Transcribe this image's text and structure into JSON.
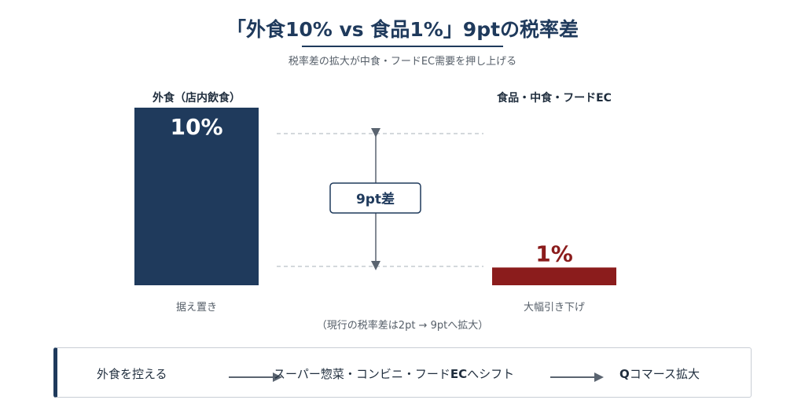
{
  "title": "「外食10% vs 食品1%」9ptの税率差",
  "subtitle": "税率差の拡大が中食・フードEC需要を押し上げる",
  "colors": {
    "left_bar": "#1f3a5c",
    "right_bar": "#8b1c1c",
    "label_right": "#8b1c1c",
    "guide": "#aab0b8",
    "arrow": "#5a6470"
  },
  "chart_data": {
    "type": "bar",
    "categories": [
      "外食（店内飲食）",
      "食品・中食・フードEC"
    ],
    "values": [
      10,
      1
    ],
    "value_labels": [
      "10%",
      "1%"
    ],
    "sub_labels": [
      "据え置き",
      "大幅引き下げ"
    ],
    "ylim": [
      0,
      10
    ],
    "difference_label": "9pt差",
    "note": "（現行の税率差は2pt → 9ptへ拡大）"
  },
  "flow": {
    "step1": "外食を控える",
    "step2_prefix": "スーパー惣菜・コンビニ・フード",
    "step2_bold": "EC",
    "step2_suffix": "へシフト",
    "step3_bold": "Q",
    "step3_suffix": "コマース拡大"
  }
}
